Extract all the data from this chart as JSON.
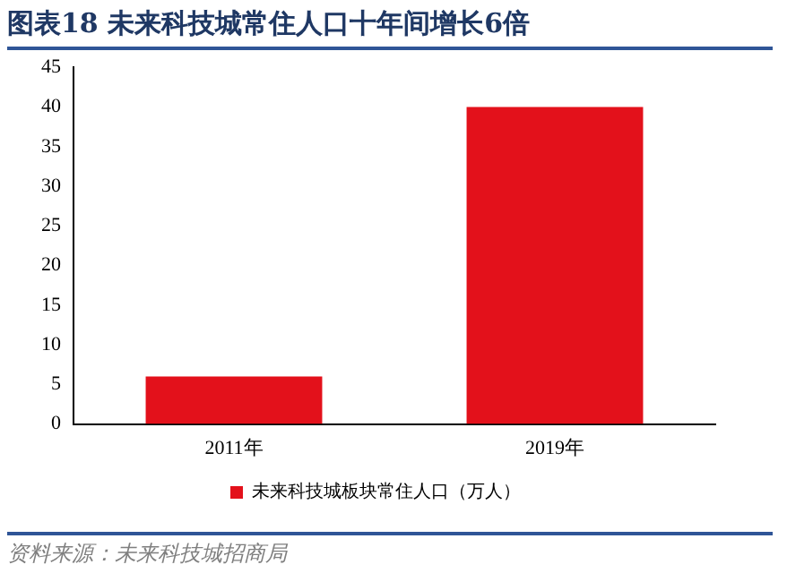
{
  "chart_data": {
    "type": "bar",
    "title": "图表18 未来科技城常住人口十年间增长6倍",
    "categories": [
      "2011年",
      "2019年"
    ],
    "series": [
      {
        "name": "未来科技城板块常住人口（万人）",
        "color": "#e3111b",
        "values": [
          6,
          40
        ]
      }
    ],
    "ylim": [
      0,
      45
    ],
    "yticks": [
      0,
      5,
      10,
      15,
      20,
      25,
      30,
      35,
      40,
      45
    ],
    "grid": false,
    "legend": "bottom",
    "annotations": [
      "资料来源：未来科技城招商局"
    ]
  }
}
